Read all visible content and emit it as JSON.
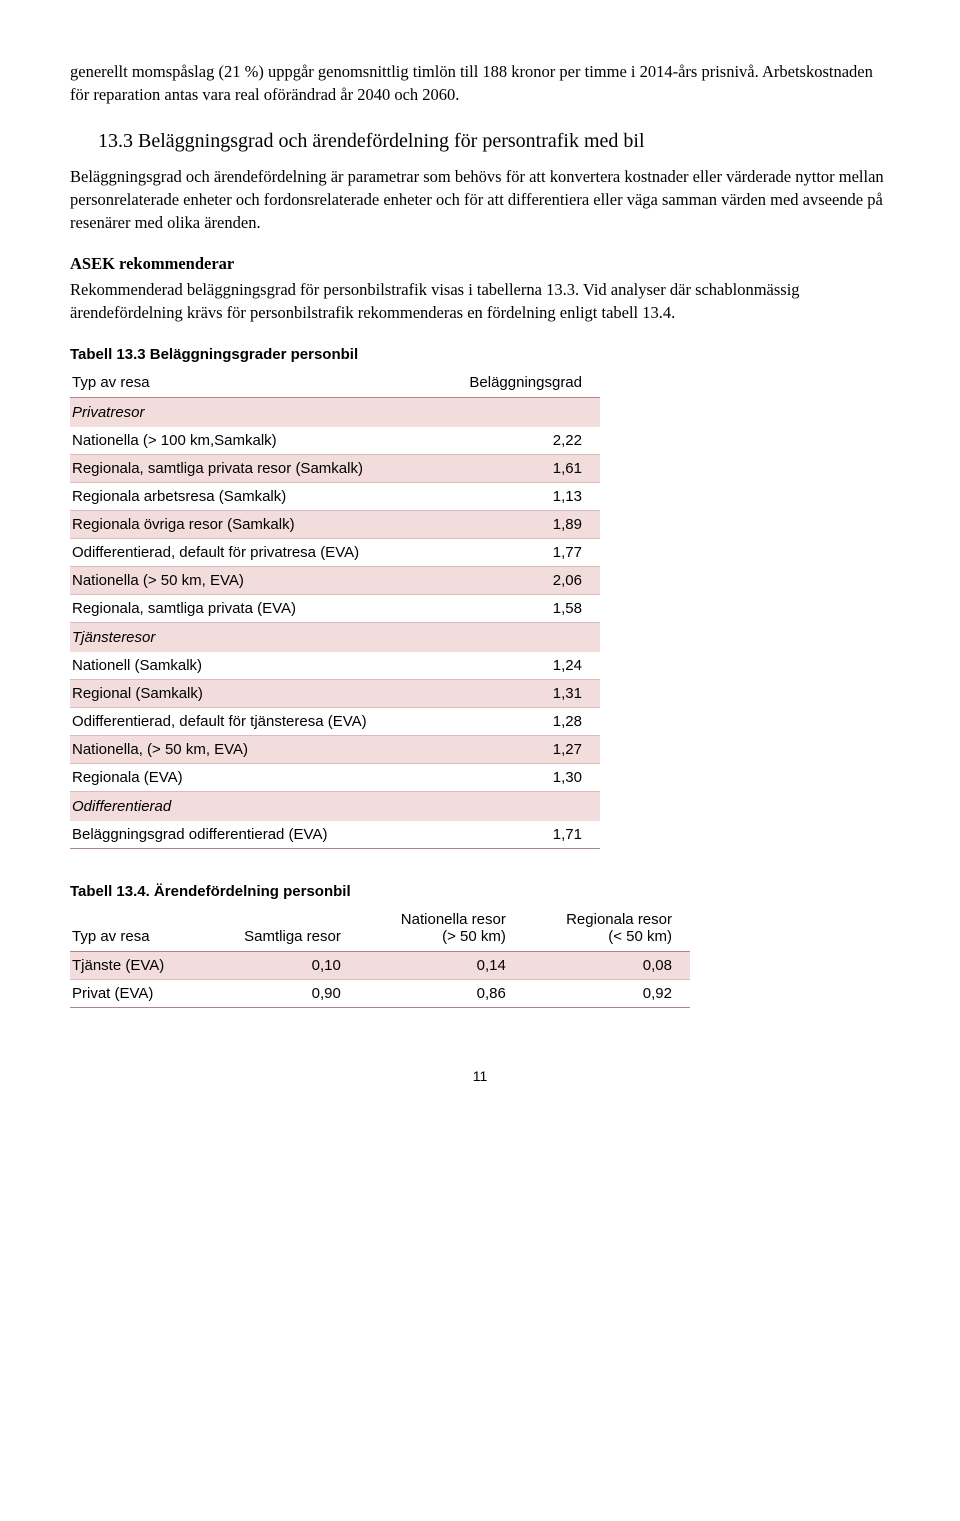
{
  "intro_paragraph": "generellt momspåslag (21 %) uppgår genomsnittlig timlön till 188 kronor per timme i 2014-års prisnivå. Arbetskostnaden för reparation antas vara real oförändrad år 2040 och 2060.",
  "section_heading": "13.3 Beläggningsgrad och ärendefördelning för persontrafik med bil",
  "section_body": "Beläggningsgrad och ärendefördelning är parametrar som behövs för att konvertera kostnader eller värderade nyttor mellan personrelaterade enheter och fordonsrelaterade enheter och för att differentiera eller väga samman värden med avseende på resenärer med olika ärenden.",
  "asek_title": "ASEK rekommenderar",
  "asek_body": "Rekommenderad beläggningsgrad för personbilstrafik visas i tabellerna 13.3. Vid analyser där schablonmässig ärendefördelning krävs för personbilstrafik rekommenderas en fördelning enligt tabell 13.4.",
  "table133": {
    "title": "Tabell 13.3 Beläggningsgrader personbil",
    "col1": "Typ av resa",
    "col2": "Beläggningsgrad",
    "sections": [
      {
        "label": "Privatresor",
        "rows": [
          {
            "label": "Nationella (> 100 km,Samkalk)",
            "val": "2,22",
            "shaded": false
          },
          {
            "label": "Regionala, samtliga privata resor (Samkalk)",
            "val": "1,61",
            "shaded": true
          },
          {
            "label": "Regionala arbetsresa (Samkalk)",
            "val": "1,13",
            "shaded": false
          },
          {
            "label": "Regionala övriga resor (Samkalk)",
            "val": "1,89",
            "shaded": true
          },
          {
            "label": "Odifferentierad, default för privatresa (EVA)",
            "val": "1,77",
            "shaded": false
          },
          {
            "label": "Nationella (> 50 km, EVA)",
            "val": "2,06",
            "shaded": true
          },
          {
            "label": "Regionala, samtliga privata (EVA)",
            "val": "1,58",
            "shaded": false
          }
        ]
      },
      {
        "label": "Tjänsteresor",
        "rows": [
          {
            "label": "Nationell (Samkalk)",
            "val": "1,24",
            "shaded": false
          },
          {
            "label": "Regional (Samkalk)",
            "val": "1,31",
            "shaded": true
          },
          {
            "label": "Odifferentierad, default för tjänsteresa (EVA)",
            "val": "1,28",
            "shaded": false
          },
          {
            "label": "Nationella, (> 50 km, EVA)",
            "val": "1,27",
            "shaded": true
          },
          {
            "label": "Regionala (EVA)",
            "val": "1,30",
            "shaded": false
          }
        ]
      },
      {
        "label": "Odifferentierad",
        "rows": [
          {
            "label": "Beläggningsgrad odifferentierad (EVA)",
            "val": "1,71",
            "shaded": false
          }
        ]
      }
    ]
  },
  "table134": {
    "title": "Tabell 13.4.  Ärendefördelning personbil",
    "headers": [
      "Typ av resa",
      "Samtliga resor",
      "Nationella resor (> 50 km)",
      "Regionala resor (< 50 km)"
    ],
    "rows": [
      {
        "label": "Tjänste (EVA)",
        "v1": "0,10",
        "v2": "0,14",
        "v3": "0,08",
        "shaded": true
      },
      {
        "label": "Privat (EVA)",
        "v1": "0,90",
        "v2": "0,86",
        "v3": "0,92",
        "shaded": false
      }
    ]
  },
  "page_number": "11",
  "colors": {
    "shade": "#f3dcdc",
    "rule": "#d9bdbd",
    "rule_dark": "#a88"
  }
}
